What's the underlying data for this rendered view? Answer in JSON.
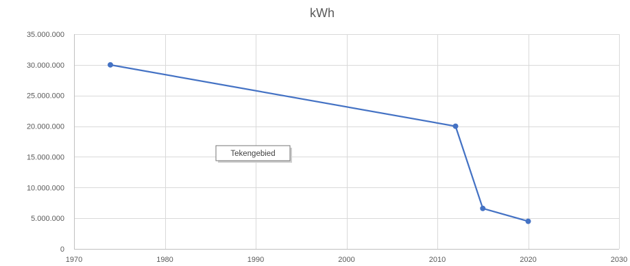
{
  "chart_data": {
    "type": "scatter",
    "title": "kWh",
    "xlabel": "",
    "ylabel": "",
    "xlim": [
      1970,
      2030
    ],
    "ylim": [
      0,
      35000000
    ],
    "x_ticks": [
      1970,
      1980,
      1990,
      2000,
      2010,
      2020,
      2030
    ],
    "y_ticks": [
      0,
      5000000,
      10000000,
      15000000,
      20000000,
      25000000,
      30000000,
      35000000
    ],
    "x_tick_labels": [
      "1970",
      "1980",
      "1990",
      "2000",
      "2010",
      "2020",
      "2030"
    ],
    "y_tick_labels": [
      "0",
      "5.000.000",
      "10.000.000",
      "15.000.000",
      "20.000.000",
      "25.000.000",
      "30.000.000",
      "35.000.000"
    ],
    "series": [
      {
        "x": [
          1974,
          2012,
          2015,
          2020
        ],
        "y": [
          30000000,
          20000000,
          6600000,
          4500000
        ],
        "color": "#4472c4",
        "mode": "lines+markers"
      }
    ],
    "grid": true,
    "legend": "none",
    "tooltip": "Tekengebied"
  }
}
